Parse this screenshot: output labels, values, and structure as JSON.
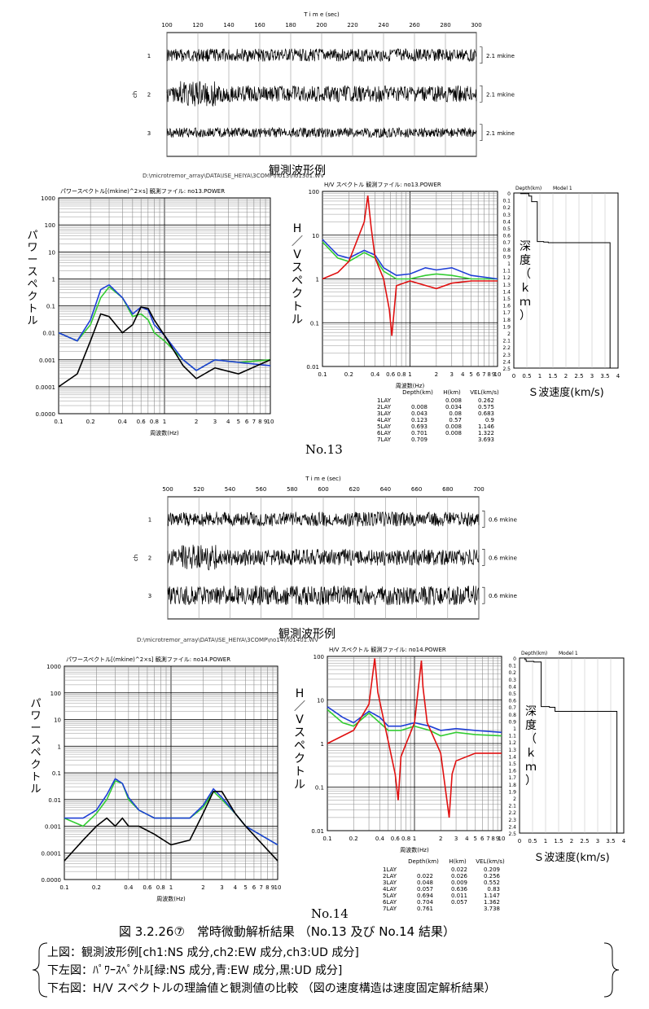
{
  "colors": {
    "ns": "#33cc33",
    "ew": "#1f3fd6",
    "ud": "#000000",
    "theory": "#e01010"
  },
  "no13": {
    "wave": {
      "xlabel": "T i m e (sec)",
      "ticks": [
        "100",
        "120",
        "140",
        "160",
        "180",
        "200",
        "220",
        "240",
        "260",
        "280",
        "300"
      ],
      "ylabel": "ch",
      "channels": [
        "1",
        "2",
        "3"
      ],
      "scales": [
        "2.1 mkine",
        "2.1 mkine",
        "2.1 mkine"
      ],
      "caption": "観測波形例",
      "path": "D:\\microtremor_array\\DATA\\ISE_HEIYA\\3COMP\\no13\\no1301.WV"
    },
    "power": {
      "title": "パワースペクトル[(mkine)^2×s]  観測ファイル:  no13.POWER",
      "ylabel": "パワースペクトル",
      "yticks": [
        "1000",
        "100",
        "10",
        "1",
        "0.1",
        "0.01",
        "0.001",
        "0.0001",
        "0.0000"
      ],
      "xticks": [
        "0.1",
        "0.2",
        "0.4",
        "0.6",
        "0.8",
        "1",
        "2",
        "3",
        "4",
        "5",
        "6",
        "7",
        "8",
        "9",
        "10"
      ],
      "xlabel": "周波数(Hz)"
    },
    "hv": {
      "title": "H/V スペクトル 観測ファイル:  no13.POWER",
      "ylabel": "H／Vスペクトル",
      "yticks": [
        "100",
        "10",
        "1",
        "0.1",
        "0.01"
      ],
      "xticks": [
        "0.1",
        "0.2",
        "0.4",
        "0.6",
        "0.8",
        "1",
        "2",
        "3",
        "4",
        "5",
        "6",
        "7",
        "8",
        "9",
        "10"
      ],
      "xlabel": "周波数(Hz)"
    },
    "profile": {
      "title": "Depth(km)",
      "model": "Model 1",
      "ylabel": "深度（ｋｍ）",
      "xlabel": "Ｓ波速度(km/s)",
      "xticks": [
        "0",
        "0.5",
        "1",
        "1.5",
        "2",
        "2.5",
        "3",
        "3.5",
        "4"
      ],
      "yticks": [
        "0",
        "0.1",
        "0.2",
        "0.3",
        "0.4",
        "0.5",
        "0.6",
        "0.7",
        "0.8",
        "0.9",
        "1",
        "1.1",
        "1.2",
        "1.3",
        "1.4",
        "1.5",
        "1.6",
        "1.7",
        "1.8",
        "1.9",
        "2",
        "2.1",
        "2.2",
        "2.3",
        "2.4",
        "2.5"
      ]
    },
    "table": {
      "headers": [
        "",
        "Depth(km)",
        "H(km)",
        "VEL(km/s)"
      ],
      "rows": [
        [
          "1LAY",
          "",
          "0.008",
          "0.262"
        ],
        [
          "2LAY",
          "0.008",
          "0.034",
          "0.575"
        ],
        [
          "3LAY",
          "0.043",
          "0.08",
          "0.683"
        ],
        [
          "4LAY",
          "0.123",
          "0.57",
          "0.9"
        ],
        [
          "5LAY",
          "0.693",
          "0.008",
          "1.146"
        ],
        [
          "6LAY",
          "0.701",
          "0.008",
          "1.322"
        ],
        [
          "7LAY",
          "0.709",
          "",
          "3.693"
        ]
      ]
    },
    "label": "No.13"
  },
  "no14": {
    "wave": {
      "xlabel": "T i m e (sec)",
      "ticks": [
        "500",
        "520",
        "540",
        "560",
        "580",
        "600",
        "620",
        "640",
        "660",
        "680",
        "700"
      ],
      "ylabel": "ch",
      "channels": [
        "1",
        "2",
        "3"
      ],
      "scales": [
        "0.6 mkine",
        "0.6 mkine",
        "0.6 mkine"
      ],
      "caption": "観測波形例",
      "path": "D:\\microtremor_array\\DATA\\ISE_HEIYA\\3COMP\\no14\\no1401.WV"
    },
    "power": {
      "title": "パワースペクトル[(mkine)^2×s]  観測ファイル:  no14.POWER",
      "ylabel": "パワースペクトル",
      "yticks": [
        "1000",
        "100",
        "10",
        "1",
        "0.1",
        "0.01",
        "0.001",
        "0.0001",
        "0.0000"
      ],
      "xticks": [
        "0.1",
        "0.2",
        "0.4",
        "0.6",
        "0.8",
        "1",
        "2",
        "3",
        "4",
        "5",
        "6",
        "7",
        "8",
        "9",
        "10"
      ],
      "xlabel": "周波数(Hz)"
    },
    "hv": {
      "title": "H/V スペクトル 観測ファイル:  no14.POWER",
      "ylabel": "H／Vスペクトル",
      "yticks": [
        "100",
        "10",
        "1",
        "0.1",
        "0.01"
      ],
      "xticks": [
        "0.1",
        "0.2",
        "0.4",
        "0.6",
        "0.8",
        "1",
        "2",
        "3",
        "4",
        "5",
        "6",
        "7",
        "8",
        "9",
        "10"
      ],
      "xlabel": "周波数(Hz)"
    },
    "profile": {
      "title": "Depth(km)",
      "model": "Model 1",
      "ylabel": "深度（ｋｍ）",
      "xlabel": "Ｓ波速度(km/s)",
      "xticks": [
        "0",
        "0.5",
        "1",
        "1.5",
        "2",
        "2.5",
        "3",
        "3.5",
        "4"
      ],
      "yticks": [
        "0",
        "0.1",
        "0.2",
        "0.3",
        "0.4",
        "0.5",
        "0.6",
        "0.7",
        "0.8",
        "0.9",
        "1",
        "1.1",
        "1.2",
        "1.3",
        "1.4",
        "1.5",
        "1.6",
        "1.7",
        "1.8",
        "1.9",
        "2",
        "2.1",
        "2.2",
        "2.3",
        "2.4",
        "2.5"
      ]
    },
    "table": {
      "headers": [
        "",
        "Depth(km)",
        "H(km)",
        "VEL(km/s)"
      ],
      "rows": [
        [
          "1LAY",
          "",
          "0.022",
          "0.209"
        ],
        [
          "2LAY",
          "0.022",
          "0.026",
          "0.256"
        ],
        [
          "3LAY",
          "0.048",
          "0.009",
          "0.552"
        ],
        [
          "4LAY",
          "0.057",
          "0.636",
          "0.83"
        ],
        [
          "5LAY",
          "0.694",
          "0.011",
          "1.147"
        ],
        [
          "6LAY",
          "0.704",
          "0.057",
          "1.362"
        ],
        [
          "7LAY",
          "0.761",
          "",
          "3.738"
        ]
      ]
    },
    "label": "No.14"
  },
  "chart_data": [
    {
      "type": "line",
      "title": "パワースペクトル[(mkine)^2×s]  観測ファイル:  no13.POWER",
      "xscale": "log",
      "yscale": "log",
      "xlim": [
        0.1,
        10
      ],
      "ylim": [
        1e-05,
        1000
      ],
      "series": [
        {
          "color": "#33cc33",
          "x": [
            0.1,
            0.15,
            0.2,
            0.25,
            0.3,
            0.4,
            0.5,
            0.6,
            0.7,
            0.8,
            1,
            1.5,
            2,
            3,
            5,
            10
          ],
          "y": [
            0.01,
            0.005,
            0.02,
            0.2,
            0.5,
            0.2,
            0.04,
            0.05,
            0.03,
            0.01,
            0.005,
            0.001,
            0.0004,
            0.001,
            0.0008,
            0.001
          ]
        },
        {
          "color": "#1f3fd6",
          "x": [
            0.1,
            0.15,
            0.2,
            0.25,
            0.3,
            0.4,
            0.5,
            0.6,
            0.7,
            0.8,
            1,
            1.5,
            2,
            3,
            5,
            10
          ],
          "y": [
            0.01,
            0.005,
            0.03,
            0.4,
            0.6,
            0.2,
            0.05,
            0.09,
            0.07,
            0.02,
            0.008,
            0.001,
            0.0004,
            0.001,
            0.0008,
            0.0006
          ]
        },
        {
          "color": "#000000",
          "x": [
            0.1,
            0.15,
            0.2,
            0.25,
            0.3,
            0.4,
            0.5,
            0.6,
            0.7,
            0.8,
            1,
            1.5,
            2,
            3,
            5,
            10
          ],
          "y": [
            0.0001,
            0.0003,
            0.005,
            0.05,
            0.04,
            0.01,
            0.02,
            0.09,
            0.08,
            0.03,
            0.008,
            0.0006,
            0.0002,
            0.0005,
            0.0003,
            0.001
          ]
        }
      ]
    },
    {
      "type": "line",
      "title": "H/V スペクトル 観測ファイル:  no13.POWER",
      "xscale": "log",
      "yscale": "log",
      "xlim": [
        0.1,
        10
      ],
      "ylim": [
        0.01,
        100
      ],
      "series": [
        {
          "color": "#33cc33",
          "x": [
            0.1,
            0.15,
            0.2,
            0.3,
            0.4,
            0.5,
            0.7,
            1,
            1.5,
            2,
            3,
            5,
            10
          ],
          "y": [
            7,
            3,
            2.5,
            4,
            3,
            1.5,
            1,
            1,
            1.2,
            1.3,
            1.2,
            1,
            1
          ]
        },
        {
          "color": "#1f3fd6",
          "x": [
            0.1,
            0.15,
            0.2,
            0.3,
            0.4,
            0.5,
            0.7,
            1,
            1.5,
            2,
            3,
            5,
            10
          ],
          "y": [
            8,
            3.5,
            3,
            4.5,
            3.5,
            1.8,
            1.2,
            1.3,
            1.8,
            1.6,
            1.8,
            1.2,
            1
          ]
        },
        {
          "color": "#e01010",
          "x": [
            0.1,
            0.15,
            0.2,
            0.3,
            0.33,
            0.36,
            0.4,
            0.5,
            0.58,
            0.62,
            0.7,
            1,
            2,
            3,
            5,
            10
          ],
          "y": [
            1,
            1.4,
            2.5,
            20,
            80,
            15,
            3,
            1,
            0.2,
            0.05,
            0.7,
            0.9,
            0.6,
            0.8,
            0.9,
            0.9
          ]
        }
      ]
    },
    {
      "type": "line",
      "title": "Depth(km)",
      "xlabel": "Ｓ波速度(km/s)",
      "ylabel": "深度（ｋｍ）",
      "xlim": [
        0,
        4
      ],
      "ylim": [
        2.5,
        0
      ],
      "series": [
        {
          "x": [
            0.262,
            0.575,
            0.683,
            0.9,
            1.146,
            1.322,
            3.693
          ],
          "y": [
            0,
            0.008,
            0.043,
            0.123,
            0.693,
            0.701,
            0.709
          ]
        }
      ]
    },
    {
      "type": "line",
      "title": "パワースペクトル[(mkine)^2×s]  観測ファイル:  no14.POWER",
      "xscale": "log",
      "yscale": "log",
      "xlim": [
        0.1,
        10
      ],
      "ylim": [
        1e-05,
        1000
      ],
      "series": [
        {
          "color": "#33cc33",
          "x": [
            0.1,
            0.15,
            0.2,
            0.25,
            0.3,
            0.35,
            0.4,
            0.5,
            0.7,
            1,
            1.5,
            2,
            2.5,
            3,
            4,
            5,
            10
          ],
          "y": [
            0.002,
            0.001,
            0.003,
            0.01,
            0.05,
            0.04,
            0.01,
            0.004,
            0.002,
            0.002,
            0.002,
            0.005,
            0.02,
            0.01,
            0.003,
            0.001,
            0.0002
          ]
        },
        {
          "color": "#1f3fd6",
          "x": [
            0.1,
            0.15,
            0.2,
            0.25,
            0.3,
            0.35,
            0.4,
            0.5,
            0.7,
            1,
            1.5,
            2,
            2.5,
            3,
            4,
            5,
            10
          ],
          "y": [
            0.002,
            0.002,
            0.004,
            0.015,
            0.06,
            0.04,
            0.012,
            0.004,
            0.002,
            0.002,
            0.002,
            0.006,
            0.025,
            0.012,
            0.003,
            0.001,
            0.0002
          ]
        },
        {
          "color": "#000000",
          "x": [
            0.1,
            0.15,
            0.2,
            0.25,
            0.3,
            0.35,
            0.4,
            0.5,
            0.7,
            1,
            1.5,
            2,
            2.5,
            3,
            4,
            5,
            10
          ],
          "y": [
            5e-05,
            0.0003,
            0.001,
            0.002,
            0.001,
            0.002,
            0.001,
            0.001,
            0.0005,
            0.0002,
            0.0003,
            0.003,
            0.02,
            0.02,
            0.003,
            0.001,
            5e-05
          ]
        }
      ]
    },
    {
      "type": "line",
      "title": "H/V スペクトル 観測ファイル:  no14.POWER",
      "xscale": "log",
      "yscale": "log",
      "xlim": [
        0.1,
        10
      ],
      "ylim": [
        0.01,
        100
      ],
      "series": [
        {
          "color": "#33cc33",
          "x": [
            0.1,
            0.15,
            0.2,
            0.3,
            0.4,
            0.5,
            0.7,
            1,
            1.5,
            2,
            3,
            5,
            10
          ],
          "y": [
            6,
            3,
            2.5,
            5,
            3,
            2,
            2,
            2.5,
            2,
            1.5,
            1.8,
            1.6,
            1.5
          ]
        },
        {
          "color": "#1f3fd6",
          "x": [
            0.1,
            0.15,
            0.2,
            0.3,
            0.4,
            0.5,
            0.7,
            1,
            1.5,
            2,
            3,
            5,
            10
          ],
          "y": [
            7,
            4,
            3,
            5.5,
            4,
            2.5,
            2.5,
            3,
            2.5,
            2,
            2.2,
            2,
            1.8
          ]
        },
        {
          "color": "#e01010",
          "x": [
            0.1,
            0.2,
            0.3,
            0.35,
            0.38,
            0.45,
            0.6,
            0.65,
            0.7,
            1,
            1.2,
            1.25,
            1.4,
            2,
            2.5,
            2.7,
            3,
            5,
            10
          ],
          "y": [
            1,
            2,
            8,
            90,
            15,
            3,
            0.2,
            0.05,
            0.5,
            3,
            80,
            20,
            3,
            0.6,
            0.02,
            0.2,
            0.4,
            0.6,
            0.6
          ]
        }
      ]
    },
    {
      "type": "line",
      "title": "Depth(km)",
      "xlabel": "Ｓ波速度(km/s)",
      "ylabel": "深度（ｋｍ）",
      "xlim": [
        0,
        4
      ],
      "ylim": [
        2.5,
        0
      ],
      "series": [
        {
          "x": [
            0.209,
            0.256,
            0.552,
            0.83,
            1.147,
            1.362,
            3.738
          ],
          "y": [
            0,
            0.022,
            0.048,
            0.057,
            0.694,
            0.704,
            0.761
          ]
        }
      ]
    }
  ],
  "caption": {
    "title": "図 3.2.26⑦　常時微動解析結果 （No.13 及び No.14 結果）",
    "lines": [
      "上図：観測波形例[ch1:NS 成分,ch2:EW 成分,ch3:UD 成分]",
      "下左図：ﾊﾟﾜｰｽﾍﾟｸﾄﾙ[緑:NS 成分,青:EW 成分,黒:UD 成分]",
      "下右図：H/V スペクトルの理論値と観測値の比較 （図の速度構造は速度固定解析結果）"
    ]
  }
}
